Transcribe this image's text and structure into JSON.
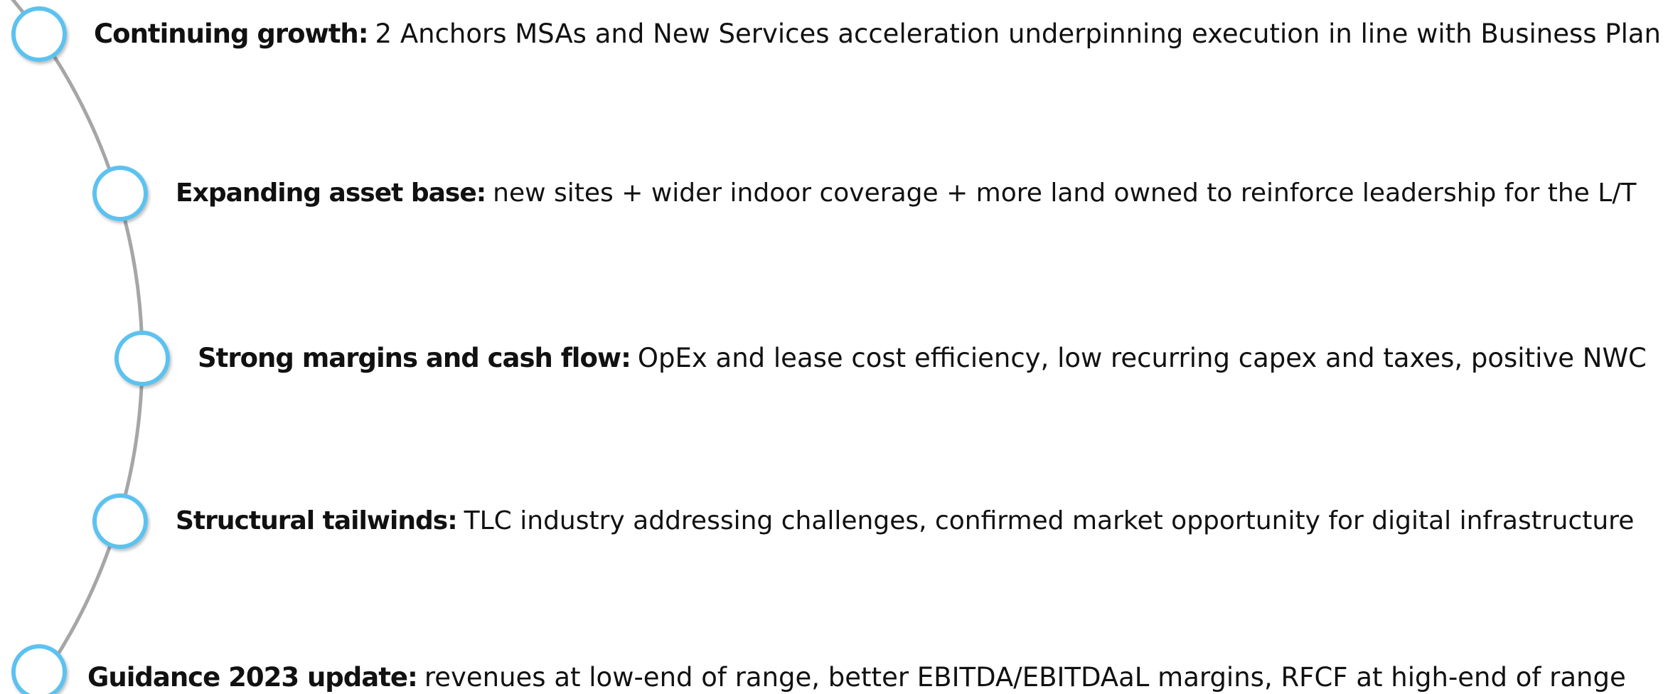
{
  "items": [
    {
      "label": "Continuing growth:",
      "text": "2 Anchors MSAs and New Services acceleration underpinning execution in line with Business Plan"
    },
    {
      "label": "Expanding asset base:",
      "text": "new sites + wider indoor coverage + more land owned to reinforce leadership for the L/T"
    },
    {
      "label": "Strong margins and cash flow:",
      "text": "OpEx and lease cost efficiency, low recurring capex and taxes, positive NWC"
    },
    {
      "label": "Structural tailwinds:",
      "text": "TLC industry addressing challenges, confirmed market opportunity for digital infrastructure"
    },
    {
      "label": "Guidance 2023 update:",
      "text": "revenues at low-end of range, better EBITDA/EBITDAaL margins, RFCF at high-end of range"
    }
  ]
}
